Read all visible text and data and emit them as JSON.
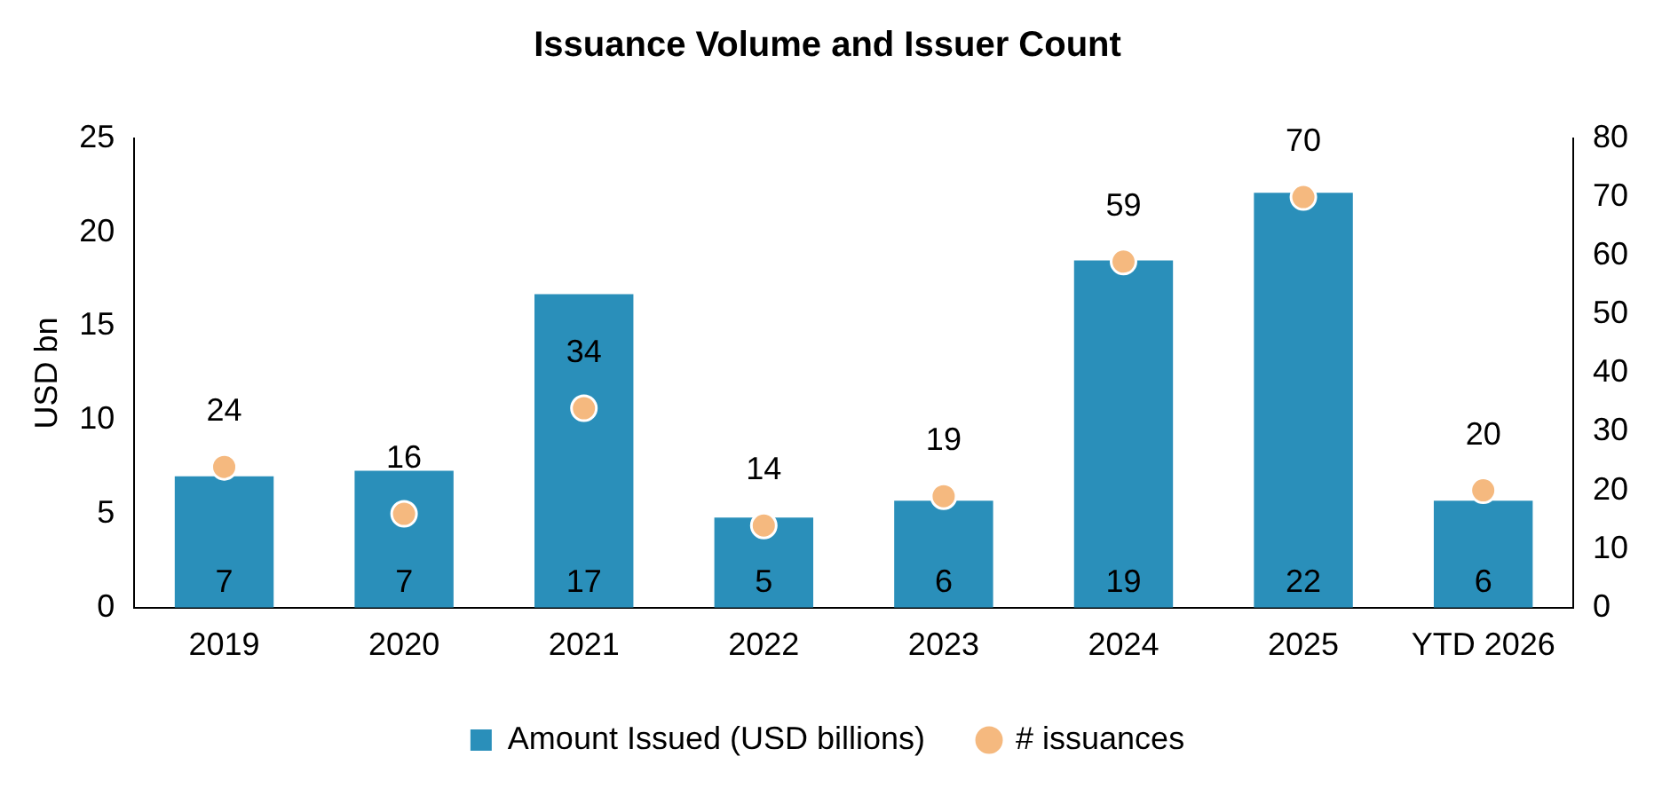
{
  "chart_data": {
    "type": "bar",
    "title": "Issuance Volume and Issuer Count",
    "ylabel": "USD bn",
    "categories": [
      "2019",
      "2020",
      "2021",
      "2022",
      "2023",
      "2024",
      "2025",
      "YTD 2026"
    ],
    "series": [
      {
        "name": "Amount Issued (USD billions)",
        "color": "#2a8fba",
        "values": [
          7.0,
          7.3,
          16.7,
          4.8,
          5.7,
          18.5,
          22.1,
          5.7
        ],
        "value_labels": [
          "7",
          "7",
          "17",
          "5",
          "6",
          "19",
          "22",
          "6"
        ]
      },
      {
        "name": "# issuances",
        "type": "scatter",
        "axis": "y2",
        "color": "#f5b97f",
        "values": [
          24,
          16,
          34,
          14,
          19,
          59,
          70,
          20
        ],
        "value_labels": [
          "24",
          "16",
          "34",
          "14",
          "19",
          "59",
          "70",
          "20"
        ]
      }
    ],
    "ylim": [
      0,
      25
    ],
    "yticks": [
      0,
      5,
      10,
      15,
      20,
      25
    ],
    "y2lim": [
      0,
      80
    ],
    "y2ticks": [
      0,
      10,
      20,
      30,
      40,
      50,
      60,
      70,
      80
    ],
    "grid": false,
    "legend": "bottom",
    "marker": "circle"
  }
}
